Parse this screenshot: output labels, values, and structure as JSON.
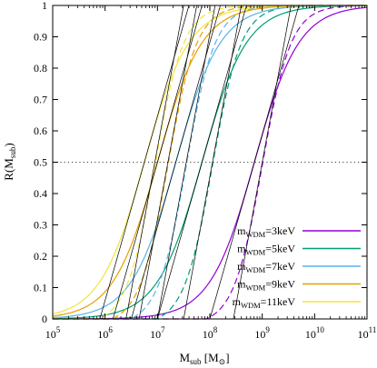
{
  "chart_data": {
    "type": "line",
    "xscale": "log",
    "xlim": [
      100000,
      100000000000
    ],
    "ylim": [
      0,
      1
    ],
    "x_ticks": [
      {
        "value": 100000,
        "base": "10",
        "exp": "5"
      },
      {
        "value": 1000000,
        "base": "10",
        "exp": "6"
      },
      {
        "value": 10000000,
        "base": "10",
        "exp": "7"
      },
      {
        "value": 100000000,
        "base": "10",
        "exp": "8"
      },
      {
        "value": 1000000000,
        "base": "10",
        "exp": "9"
      },
      {
        "value": 10000000000,
        "base": "10",
        "exp": "10"
      },
      {
        "value": 100000000000,
        "base": "10",
        "exp": "11"
      }
    ],
    "y_ticks": [
      "0",
      "0.1",
      "0.2",
      "0.3",
      "0.4",
      "0.5",
      "0.6",
      "0.7",
      "0.8",
      "0.9",
      "1"
    ],
    "xlabel": {
      "main": "M",
      "sub": "sub",
      "unit": " [M",
      "unit_sub": "⊙",
      "close": "]"
    },
    "ylabel": {
      "main": "R(M",
      "sub": "sub",
      "close": ")"
    },
    "reference_line": {
      "y": 0.5,
      "style": "dotted"
    },
    "legend_position": "bottom-right",
    "series": [
      {
        "name": "m",
        "name_sub": "WDM",
        "name_rest": "=3keV",
        "color": "#9400d3",
        "m_half_solid_log10": 8.85,
        "m_half_dashed_log10": 9.0,
        "width_solid": 0.85,
        "width_dashed": 0.55
      },
      {
        "name": "m",
        "name_sub": "WDM",
        "name_rest": "=5keV",
        "color": "#009e73",
        "m_half_solid_log10": 7.85,
        "m_half_dashed_log10": 8.05,
        "width_solid": 0.85,
        "width_dashed": 0.55
      },
      {
        "name": "m",
        "name_sub": "WDM",
        "name_rest": "=7keV",
        "color": "#56b4e9",
        "m_half_solid_log10": 7.35,
        "m_half_dashed_log10": 7.55,
        "width_solid": 0.85,
        "width_dashed": 0.55
      },
      {
        "name": "m",
        "name_sub": "WDM",
        "name_rest": "=9keV",
        "color": "#e69f00",
        "m_half_solid_log10": 7.0,
        "m_half_dashed_log10": 7.2,
        "width_solid": 0.85,
        "width_dashed": 0.55
      },
      {
        "name": "m",
        "name_sub": "WDM",
        "name_rest": "=11keV",
        "color": "#f0e442",
        "m_half_solid_log10": 6.75,
        "m_half_dashed_log10": 6.95,
        "width_solid": 0.85,
        "width_dashed": 0.55
      }
    ],
    "tangent_lines": {
      "color": "#000000",
      "slope_per_decade": 0.62
    }
  }
}
